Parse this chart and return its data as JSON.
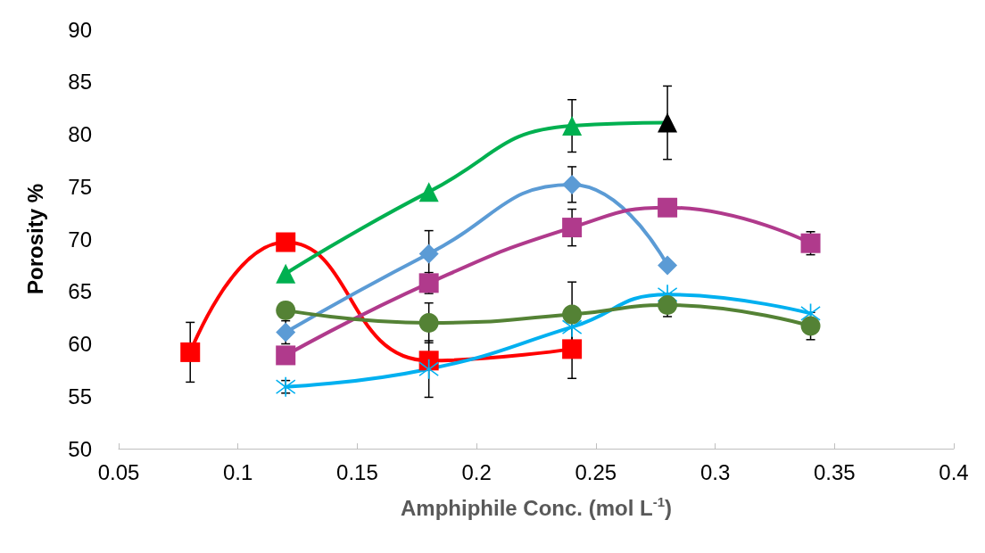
{
  "chart_data": {
    "type": "line",
    "xlabel": "Amphiphile Conc. (mol L$^{-1}$)",
    "ylabel": "Porosity %",
    "xlim": [
      0.05,
      0.4
    ],
    "xticks": [
      0.05,
      0.1,
      0.15,
      0.2,
      0.25,
      0.3,
      0.35,
      0.4
    ],
    "ylim": [
      50,
      90
    ],
    "yticks": [
      50,
      55,
      60,
      65,
      70,
      75,
      80,
      85,
      90
    ],
    "grid": false,
    "line_style": "solid",
    "series": [
      {
        "color": "#ff0000",
        "marker": "square",
        "x": [
          0.08,
          0.12,
          0.18,
          0.24
        ],
        "values": [
          59.2,
          69.7,
          58.4,
          59.5
        ],
        "errors": [
          2.85,
          null,
          null,
          2.8
        ]
      },
      {
        "color": "#00b050",
        "marker": "triangle",
        "x": [
          0.12,
          0.18,
          0.24,
          0.28
        ],
        "values": [
          66.7,
          74.5,
          80.8,
          81.1
        ],
        "colors": [
          "#00b050",
          "#00b050",
          "#00b050",
          "#000000"
        ],
        "errors": [
          null,
          null,
          2.5,
          3.5
        ]
      },
      {
        "color": "#5b9bd5",
        "marker": "diamond",
        "x": [
          0.12,
          0.18,
          0.24,
          0.28
        ],
        "values": [
          61.1,
          68.6,
          75.2,
          67.5
        ],
        "errors": [
          1.1,
          2.2,
          1.7,
          null
        ]
      },
      {
        "color": "#b03a8c",
        "marker": "square",
        "x": [
          0.12,
          0.18,
          0.24,
          0.28,
          0.34
        ],
        "values": [
          58.9,
          65.8,
          71.1,
          73.0,
          69.6
        ],
        "errors": [
          null,
          1.0,
          1.75,
          0.3,
          1.1
        ]
      },
      {
        "color": "#00b0f0",
        "marker": "cross",
        "x": [
          0.12,
          0.18,
          0.24,
          0.28,
          0.34
        ],
        "values": [
          55.9,
          57.6,
          61.6,
          64.7,
          62.9
        ],
        "errors": [
          0.6,
          2.7,
          null,
          null,
          null
        ]
      },
      {
        "color": "#548235",
        "marker": "circle",
        "x": [
          0.12,
          0.18,
          0.24,
          0.28,
          0.34
        ],
        "values": [
          63.2,
          62.0,
          62.8,
          63.7,
          61.7
        ],
        "errors": [
          null,
          1.9,
          3.1,
          1.1,
          1.3
        ]
      }
    ]
  }
}
